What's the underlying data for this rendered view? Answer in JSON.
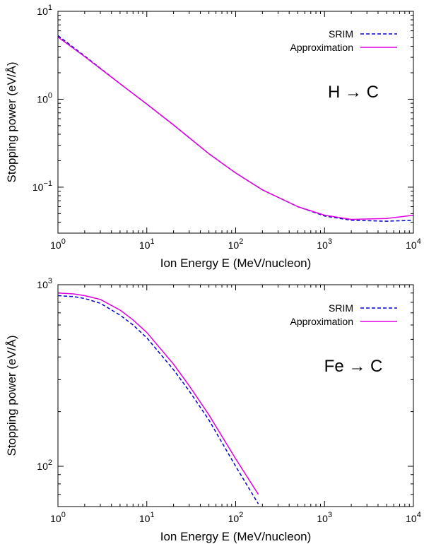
{
  "chart_data": [
    {
      "type": "line",
      "xscale": "log",
      "yscale": "log",
      "xlim": [
        1,
        10000
      ],
      "ylim": [
        0.03,
        10
      ],
      "xlabel": "Ion Energy E  (MeV/nucleon)",
      "ylabel": "Stopping power  (eV/Å)",
      "annotation": "H → C",
      "legend_position": "top-right",
      "x_ticks": [
        {
          "value": 1,
          "base": "10",
          "exp": "0"
        },
        {
          "value": 10,
          "base": "10",
          "exp": "1"
        },
        {
          "value": 100,
          "base": "10",
          "exp": "2"
        },
        {
          "value": 1000,
          "base": "10",
          "exp": "3"
        },
        {
          "value": 10000,
          "base": "10",
          "exp": "4"
        }
      ],
      "y_ticks": [
        {
          "value": 0.1,
          "base": "10",
          "exp": "−1"
        },
        {
          "value": 1,
          "base": "10",
          "exp": "0"
        },
        {
          "value": 10,
          "base": "10",
          "exp": "1"
        }
      ],
      "series": [
        {
          "name": "SRIM",
          "style": "dashed",
          "color": "#0000cc",
          "x": [
            1,
            2,
            5,
            10,
            20,
            50,
            100,
            200,
            500,
            1000,
            2000,
            5000,
            10000
          ],
          "y": [
            5.3,
            3.1,
            1.5,
            0.88,
            0.51,
            0.24,
            0.145,
            0.093,
            0.06,
            0.047,
            0.042,
            0.041,
            0.042
          ]
        },
        {
          "name": "Approximation",
          "style": "solid",
          "color": "#e000e0",
          "x": [
            1,
            2,
            5,
            10,
            20,
            50,
            100,
            200,
            500,
            1000,
            2000,
            5000,
            10000
          ],
          "y": [
            5.1,
            3.05,
            1.5,
            0.88,
            0.51,
            0.24,
            0.145,
            0.093,
            0.06,
            0.048,
            0.043,
            0.044,
            0.048
          ]
        }
      ]
    },
    {
      "type": "line",
      "xscale": "log",
      "yscale": "log",
      "xlim": [
        1,
        10000
      ],
      "ylim": [
        60,
        1000
      ],
      "xlabel": "Ion Energy E  (MeV/nucleon)",
      "ylabel": "Stopping power  (eV/Å)",
      "annotation": "Fe → C",
      "legend_position": "top-right",
      "x_ticks": [
        {
          "value": 1,
          "base": "10",
          "exp": "0"
        },
        {
          "value": 10,
          "base": "10",
          "exp": "1"
        },
        {
          "value": 100,
          "base": "10",
          "exp": "2"
        },
        {
          "value": 1000,
          "base": "10",
          "exp": "3"
        },
        {
          "value": 10000,
          "base": "10",
          "exp": "4"
        }
      ],
      "y_ticks": [
        {
          "value": 100,
          "base": "10",
          "exp": "2"
        },
        {
          "value": 1000,
          "base": "10",
          "exp": "3"
        }
      ],
      "series": [
        {
          "name": "SRIM",
          "style": "dashed",
          "color": "#0000cc",
          "x": [
            1,
            1.5,
            2,
            3,
            5,
            7,
            10,
            20,
            30,
            50,
            100,
            180
          ],
          "y": [
            870,
            860,
            840,
            790,
            680,
            600,
            510,
            340,
            260,
            180,
            100,
            62
          ]
        },
        {
          "name": "Approximation",
          "style": "solid",
          "color": "#e000e0",
          "x": [
            1,
            1.5,
            2,
            3,
            5,
            7,
            10,
            20,
            30,
            50,
            100,
            180
          ],
          "y": [
            900,
            890,
            870,
            830,
            725,
            640,
            545,
            365,
            278,
            192,
            110,
            70
          ]
        }
      ]
    }
  ]
}
